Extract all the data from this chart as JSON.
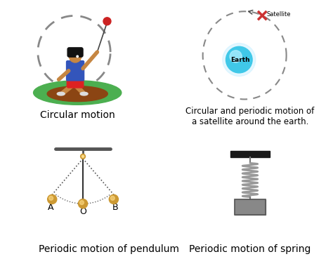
{
  "bg_color": "#ffffff",
  "labels": {
    "circular_motion": "Circular motion",
    "satellite": "Circular and periodic motion of\na satellite around the earth.",
    "pendulum": "Periodic motion of pendulum",
    "spring": "Periodic motion of spring"
  },
  "satellite_label": "Satellite",
  "earth_label": "Earth",
  "earth_color": "#40c8e8",
  "earth_highlight": "#b8f0ff",
  "dashed_color": "#888888",
  "satellite_color": "#cc3333",
  "spring_wall_color": "#1a1a1a",
  "spring_color": "#999999",
  "mass_color": "#888888",
  "mass_border": "#555555",
  "pivot_color": "#cc9933",
  "bob_color": "#cc9933",
  "bob_border": "#aa7700",
  "support_color": "#555555",
  "rod_color": "#333333",
  "font_size_label": 10,
  "font_size_caption": 8.5,
  "font_size_small": 6.5
}
